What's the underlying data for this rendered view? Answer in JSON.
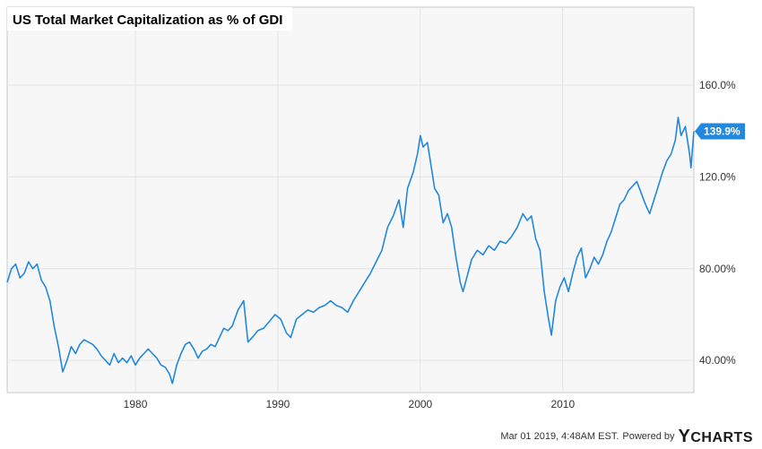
{
  "footer": {
    "timestamp": "Mar 01 2019, 4:48AM EST.",
    "powered_by": "Powered by",
    "brand_y": "Y",
    "brand_rest": "CHARTS"
  },
  "colors": {
    "line": "#2288dd",
    "plot_bg": "#f7f7f7",
    "grid": "#e3e3e3",
    "badge": "#2288dd"
  },
  "chart_data": {
    "type": "line",
    "title": "US Total Market Capitalization as % of GDI",
    "xlabel": "",
    "ylabel": "",
    "x_ticks": [
      "1980",
      "1990",
      "2000",
      "2010"
    ],
    "y_ticks": [
      "40.00%",
      "80.00%",
      "120.0%",
      "160.0%"
    ],
    "xlim": [
      1971.0,
      2019.2
    ],
    "ylim": [
      26,
      194
    ],
    "grid": true,
    "latest_value_label": "139.9%",
    "series": [
      {
        "points": [
          [
            1971.0,
            74
          ],
          [
            1971.3,
            80
          ],
          [
            1971.6,
            82
          ],
          [
            1971.9,
            76
          ],
          [
            1972.2,
            78
          ],
          [
            1972.5,
            83
          ],
          [
            1972.8,
            80
          ],
          [
            1973.1,
            82
          ],
          [
            1973.4,
            75
          ],
          [
            1973.7,
            72
          ],
          [
            1974.0,
            66
          ],
          [
            1974.3,
            55
          ],
          [
            1974.6,
            46
          ],
          [
            1974.9,
            35
          ],
          [
            1975.2,
            40
          ],
          [
            1975.5,
            46
          ],
          [
            1975.8,
            43
          ],
          [
            1976.1,
            47
          ],
          [
            1976.4,
            49
          ],
          [
            1976.7,
            48
          ],
          [
            1977.0,
            47
          ],
          [
            1977.3,
            45
          ],
          [
            1977.6,
            42
          ],
          [
            1977.9,
            40
          ],
          [
            1978.2,
            38
          ],
          [
            1978.5,
            43
          ],
          [
            1978.8,
            39
          ],
          [
            1979.1,
            41
          ],
          [
            1979.4,
            39
          ],
          [
            1979.7,
            42
          ],
          [
            1980.0,
            38
          ],
          [
            1980.3,
            41
          ],
          [
            1980.6,
            43
          ],
          [
            1980.9,
            45
          ],
          [
            1981.2,
            43
          ],
          [
            1981.5,
            41
          ],
          [
            1981.8,
            38
          ],
          [
            1982.1,
            37
          ],
          [
            1982.4,
            34
          ],
          [
            1982.6,
            30
          ],
          [
            1982.9,
            38
          ],
          [
            1983.2,
            43
          ],
          [
            1983.5,
            47
          ],
          [
            1983.8,
            48
          ],
          [
            1984.1,
            45
          ],
          [
            1984.4,
            41
          ],
          [
            1984.7,
            44
          ],
          [
            1985.0,
            45
          ],
          [
            1985.3,
            47
          ],
          [
            1985.6,
            46
          ],
          [
            1985.9,
            50
          ],
          [
            1986.2,
            54
          ],
          [
            1986.5,
            53
          ],
          [
            1986.8,
            55
          ],
          [
            1987.2,
            62
          ],
          [
            1987.6,
            66
          ],
          [
            1987.9,
            48
          ],
          [
            1988.2,
            50
          ],
          [
            1988.6,
            53
          ],
          [
            1989.0,
            54
          ],
          [
            1989.4,
            57
          ],
          [
            1989.8,
            60
          ],
          [
            1990.2,
            58
          ],
          [
            1990.6,
            52
          ],
          [
            1990.9,
            50
          ],
          [
            1991.3,
            58
          ],
          [
            1991.7,
            60
          ],
          [
            1992.1,
            62
          ],
          [
            1992.5,
            61
          ],
          [
            1992.9,
            63
          ],
          [
            1993.3,
            64
          ],
          [
            1993.7,
            66
          ],
          [
            1994.1,
            64
          ],
          [
            1994.5,
            63
          ],
          [
            1994.9,
            61
          ],
          [
            1995.3,
            66
          ],
          [
            1995.7,
            70
          ],
          [
            1996.1,
            74
          ],
          [
            1996.5,
            78
          ],
          [
            1996.9,
            83
          ],
          [
            1997.3,
            88
          ],
          [
            1997.7,
            98
          ],
          [
            1998.1,
            103
          ],
          [
            1998.5,
            110
          ],
          [
            1998.8,
            98
          ],
          [
            1999.1,
            115
          ],
          [
            1999.5,
            122
          ],
          [
            1999.8,
            130
          ],
          [
            2000.0,
            138
          ],
          [
            2000.2,
            133
          ],
          [
            2000.5,
            135
          ],
          [
            2000.8,
            123
          ],
          [
            2001.0,
            115
          ],
          [
            2001.3,
            112
          ],
          [
            2001.6,
            100
          ],
          [
            2001.9,
            104
          ],
          [
            2002.2,
            98
          ],
          [
            2002.5,
            85
          ],
          [
            2002.8,
            74
          ],
          [
            2003.0,
            70
          ],
          [
            2003.3,
            77
          ],
          [
            2003.6,
            84
          ],
          [
            2004.0,
            88
          ],
          [
            2004.4,
            86
          ],
          [
            2004.8,
            90
          ],
          [
            2005.2,
            88
          ],
          [
            2005.6,
            92
          ],
          [
            2006.0,
            91
          ],
          [
            2006.4,
            94
          ],
          [
            2006.8,
            98
          ],
          [
            2007.2,
            104
          ],
          [
            2007.5,
            101
          ],
          [
            2007.8,
            103
          ],
          [
            2008.1,
            93
          ],
          [
            2008.4,
            88
          ],
          [
            2008.7,
            70
          ],
          [
            2009.0,
            58
          ],
          [
            2009.2,
            51
          ],
          [
            2009.5,
            66
          ],
          [
            2009.8,
            72
          ],
          [
            2010.1,
            76
          ],
          [
            2010.4,
            70
          ],
          [
            2010.7,
            78
          ],
          [
            2011.0,
            85
          ],
          [
            2011.3,
            89
          ],
          [
            2011.6,
            76
          ],
          [
            2011.9,
            80
          ],
          [
            2012.2,
            85
          ],
          [
            2012.5,
            82
          ],
          [
            2012.8,
            86
          ],
          [
            2013.1,
            92
          ],
          [
            2013.4,
            96
          ],
          [
            2013.7,
            102
          ],
          [
            2014.0,
            108
          ],
          [
            2014.3,
            110
          ],
          [
            2014.6,
            114
          ],
          [
            2014.9,
            116
          ],
          [
            2015.2,
            118
          ],
          [
            2015.5,
            113
          ],
          [
            2015.8,
            108
          ],
          [
            2016.1,
            104
          ],
          [
            2016.4,
            110
          ],
          [
            2016.7,
            116
          ],
          [
            2017.0,
            122
          ],
          [
            2017.3,
            127
          ],
          [
            2017.6,
            130
          ],
          [
            2017.9,
            136
          ],
          [
            2018.1,
            146
          ],
          [
            2018.3,
            138
          ],
          [
            2018.6,
            142
          ],
          [
            2018.9,
            130
          ],
          [
            2019.0,
            124
          ],
          [
            2019.2,
            139.9
          ]
        ]
      }
    ]
  }
}
